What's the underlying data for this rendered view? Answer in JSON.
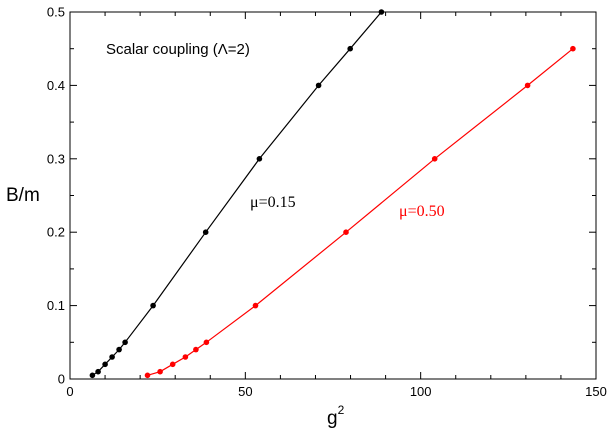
{
  "chart_data": {
    "type": "line",
    "title": "",
    "xlabel": "g",
    "xlabel_superscript": "2",
    "ylabel": "B/m",
    "xlim": [
      0,
      150
    ],
    "ylim": [
      0,
      0.5
    ],
    "x_ticks": [
      "0",
      "50",
      "100",
      "150"
    ],
    "y_ticks": [
      "0",
      "0.1",
      "0.2",
      "0.3",
      "0.4",
      "0.5"
    ],
    "grid": false,
    "legend": "none",
    "annotations": {
      "coupling": "Scalar coupling (Λ=2)"
    },
    "series": [
      {
        "name": "μ=0.15",
        "color": "#000000",
        "x": [
          6.4,
          8.0,
          10.0,
          12.0,
          14.0,
          15.7,
          23.7,
          38.7,
          54.0,
          70.9,
          79.9,
          88.8
        ],
        "y": [
          0.005,
          0.01,
          0.02,
          0.03,
          0.04,
          0.05,
          0.1,
          0.2,
          0.3,
          0.4,
          0.45,
          0.5
        ]
      },
      {
        "name": "μ=0.50",
        "color": "#ff0000",
        "x": [
          22.1,
          25.7,
          29.3,
          32.9,
          35.9,
          38.9,
          52.9,
          78.7,
          104.0,
          130.5,
          143.4
        ],
        "y": [
          0.005,
          0.01,
          0.02,
          0.03,
          0.04,
          0.05,
          0.1,
          0.2,
          0.3,
          0.4,
          0.45
        ]
      }
    ]
  }
}
